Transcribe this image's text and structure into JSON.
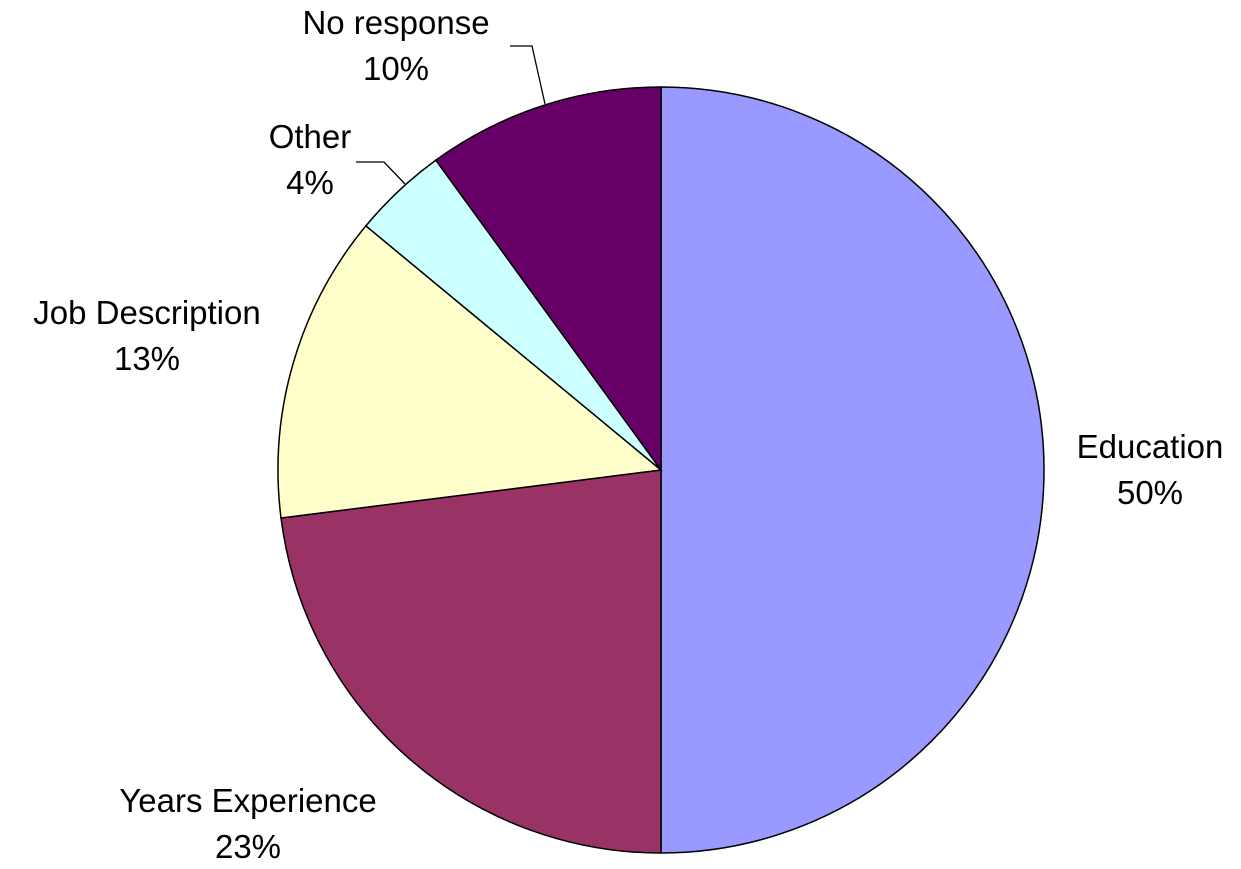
{
  "chart_data": {
    "type": "pie",
    "slices": [
      {
        "label": "Education",
        "value": 50,
        "value_label": "50%",
        "color": "#9999FF"
      },
      {
        "label": "Years Experience",
        "value": 23,
        "value_label": "23%",
        "color": "#993366"
      },
      {
        "label": "Job Description",
        "value": 13,
        "value_label": "13%",
        "color": "#FFFFCC"
      },
      {
        "label": "Other",
        "value": 4,
        "value_label": "4%",
        "color": "#CCFFFF"
      },
      {
        "label": "No response",
        "value": 10,
        "value_label": "10%",
        "color": "#660066"
      }
    ],
    "start_angle": "12 o'clock",
    "direction": "clockwise",
    "legend": "none"
  }
}
